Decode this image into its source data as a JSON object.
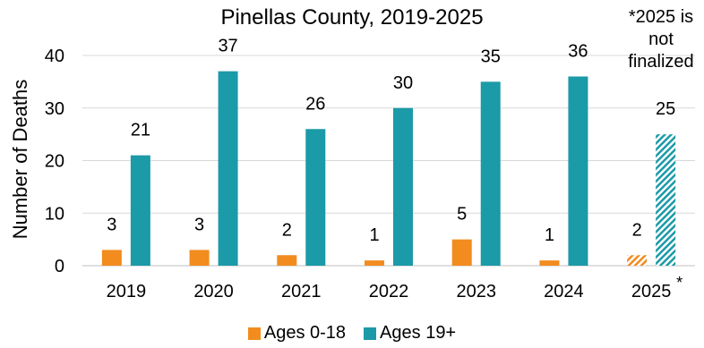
{
  "chart_data": {
    "type": "bar",
    "title": "Pinellas County, 2019-2025",
    "xlabel": "",
    "ylabel": "Number of Deaths",
    "categories": [
      "2019",
      "2020",
      "2021",
      "2022",
      "2023",
      "2024",
      "2025"
    ],
    "series": [
      {
        "name": "Ages 0-18",
        "values": [
          3,
          3,
          2,
          1,
          5,
          1,
          2
        ],
        "color": "#F28C1E"
      },
      {
        "name": "Ages 19+",
        "values": [
          21,
          37,
          26,
          30,
          35,
          36,
          25
        ],
        "color": "#1B9AA8"
      }
    ],
    "ylim": [
      0,
      40
    ],
    "yticks": [
      0,
      10,
      20,
      30,
      40
    ],
    "grid": true,
    "legend_position": "bottom",
    "hatched_category": "2025",
    "hatched_category_mark": "*",
    "note": "*2025 is not finalized"
  }
}
